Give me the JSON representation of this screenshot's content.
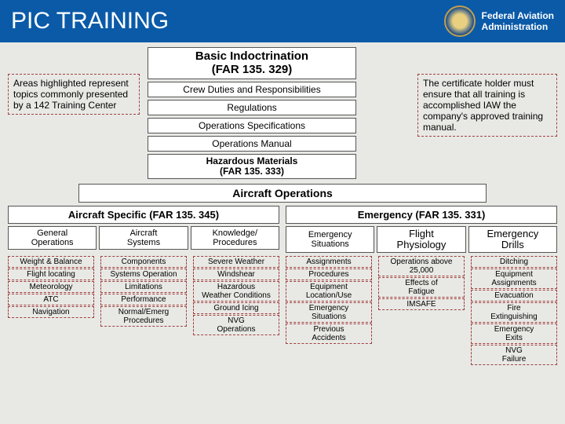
{
  "header": {
    "title": "PIC TRAINING",
    "agency_line1": "Federal Aviation",
    "agency_line2": "Administration"
  },
  "colors": {
    "header_bg": "#0a5aa8",
    "body_bg": "#e8e9e5",
    "dashed_border": "#a04040",
    "box_border": "#555555"
  },
  "basic": {
    "title": "Basic Indoctrination\n(FAR 135. 329)",
    "items": [
      "Crew Duties and Responsibilities",
      "Regulations",
      "Operations Specifications",
      "Operations Manual",
      "Hazardous Materials\n(FAR 135. 333)"
    ]
  },
  "notes": {
    "left": "Areas highlighted represent topics commonly presented by a 142 Training Center",
    "right": "The certificate holder must ensure that all training is accomplished IAW the company's approved training manual."
  },
  "aircraft_ops": "Aircraft Operations",
  "specific": {
    "title": "Aircraft Specific (FAR 135. 345)",
    "cols": [
      "General\nOperations",
      "Aircraft\nSystems",
      "Knowledge/\nProcedures"
    ]
  },
  "emergency": {
    "title": "Emergency (FAR 135. 331)",
    "cols": [
      "Emergency\nSituations",
      "Flight\nPhysiology",
      "Emergency\nDrills"
    ]
  },
  "details": {
    "general": [
      "Weight & Balance",
      "Flight locating",
      "Meteorology",
      "ATC",
      "Navigation"
    ],
    "systems": [
      "Components",
      "Systems Operation",
      "Limitations",
      "Performance",
      "Normal/Emerg\nProcedures"
    ],
    "knowledge": [
      "Severe Weather",
      "Windshear",
      "Hazardous\nWeather Conditions",
      "Ground Icing",
      "NVG\nOperations"
    ],
    "situations": [
      "Assignments",
      "Procedures",
      "Equipment\nLocation/Use",
      "Emergency\nSituations",
      "Previous\nAccidents"
    ],
    "physiology": [
      "Operations above\n25,000",
      "Effects of\nFatigue",
      "IMSAFE"
    ],
    "drills": [
      "Ditching",
      "Equipment\nAssignments",
      "Evacuation",
      "Fire\nExtinguishing",
      "Emergency\nExits",
      "NVG\nFailure"
    ]
  }
}
